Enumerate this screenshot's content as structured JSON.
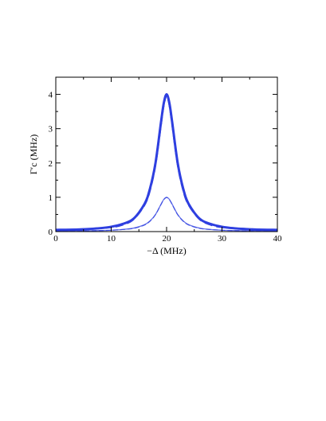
{
  "chart_data": {
    "type": "line",
    "xlabel": "−Δ (MHz)",
    "ylabel": "Γ′c (MHz)",
    "xlim": [
      0,
      40
    ],
    "ylim": [
      0,
      4.5
    ],
    "x_ticks": [
      0,
      10,
      20,
      30,
      40
    ],
    "y_ticks": [
      0,
      1,
      2,
      3,
      4
    ],
    "x_tick_labels": [
      "0",
      "10",
      "20",
      "30",
      "40"
    ],
    "y_tick_labels": [
      "0",
      "1",
      "2",
      "3",
      "4"
    ],
    "grid": false,
    "legend": "none",
    "colors": {
      "series": "#2e3fe0",
      "axis": "#000000"
    },
    "series": [
      {
        "style": "solid-thick",
        "x": [
          0,
          4,
          8,
          10,
          12,
          14,
          16,
          17,
          18,
          19,
          19.5,
          20,
          20.5,
          21,
          22,
          23,
          24,
          26,
          28,
          30,
          32,
          36,
          40
        ],
        "y": [
          0.05,
          0.06,
          0.1,
          0.14,
          0.22,
          0.37,
          0.8,
          1.25,
          2.0,
          3.2,
          3.75,
          4.0,
          3.75,
          3.2,
          2.0,
          1.25,
          0.8,
          0.37,
          0.22,
          0.14,
          0.1,
          0.06,
          0.05
        ]
      },
      {
        "style": "dashed-thick",
        "x": [
          0,
          4,
          8,
          10,
          12,
          14,
          16,
          17,
          18,
          19,
          19.5,
          20,
          20.5,
          21,
          22,
          23,
          24,
          26,
          28,
          30,
          32,
          36,
          40
        ],
        "y": [
          0.04,
          0.06,
          0.1,
          0.13,
          0.2,
          0.36,
          0.78,
          1.22,
          1.98,
          3.17,
          3.72,
          3.97,
          3.72,
          3.17,
          1.98,
          1.22,
          0.78,
          0.36,
          0.2,
          0.13,
          0.1,
          0.06,
          0.04
        ]
      },
      {
        "style": "solid-thin",
        "x": [
          0,
          4,
          8,
          10,
          12,
          14,
          16,
          17,
          18,
          19,
          19.5,
          20,
          20.5,
          21,
          22,
          23,
          24,
          26,
          28,
          30,
          32,
          36,
          40
        ],
        "y": [
          0.01,
          0.02,
          0.03,
          0.04,
          0.06,
          0.1,
          0.2,
          0.31,
          0.5,
          0.8,
          0.94,
          1.0,
          0.94,
          0.8,
          0.5,
          0.31,
          0.2,
          0.1,
          0.06,
          0.04,
          0.03,
          0.02,
          0.01
        ]
      },
      {
        "style": "dashed-thin",
        "x": [
          0,
          4,
          8,
          10,
          12,
          14,
          16,
          17,
          18,
          19,
          19.5,
          20,
          20.5,
          21,
          22,
          23,
          24,
          26,
          28,
          30,
          32,
          36,
          40
        ],
        "y": [
          0.01,
          0.02,
          0.03,
          0.04,
          0.06,
          0.09,
          0.19,
          0.3,
          0.49,
          0.79,
          0.93,
          0.99,
          0.93,
          0.79,
          0.49,
          0.3,
          0.19,
          0.09,
          0.06,
          0.04,
          0.03,
          0.02,
          0.01
        ]
      }
    ]
  }
}
